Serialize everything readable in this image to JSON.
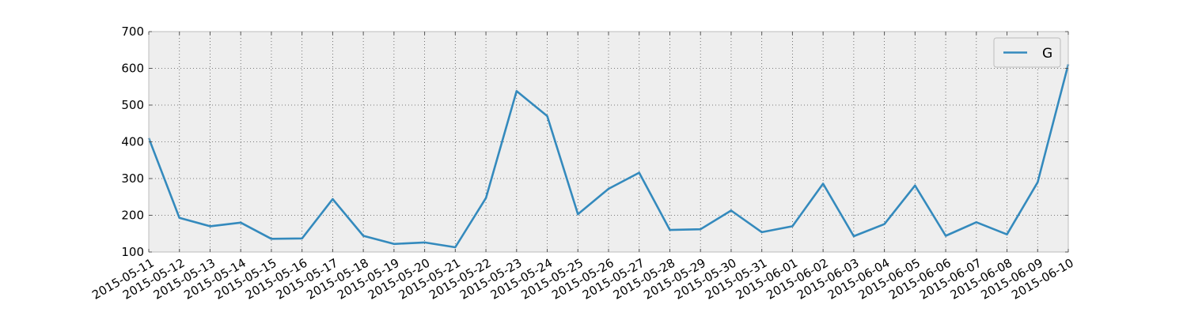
{
  "chart_data": {
    "type": "line",
    "title": "",
    "xlabel": "",
    "ylabel": "",
    "x": [
      "2015-05-11",
      "2015-05-12",
      "2015-05-13",
      "2015-05-14",
      "2015-05-15",
      "2015-05-16",
      "2015-05-17",
      "2015-05-18",
      "2015-05-19",
      "2015-05-20",
      "2015-05-21",
      "2015-05-22",
      "2015-05-23",
      "2015-05-24",
      "2015-05-25",
      "2015-05-26",
      "2015-05-27",
      "2015-05-28",
      "2015-05-29",
      "2015-05-30",
      "2015-05-31",
      "2015-06-01",
      "2015-06-02",
      "2015-06-03",
      "2015-06-04",
      "2015-06-05",
      "2015-06-06",
      "2015-06-07",
      "2015-06-08",
      "2015-06-09",
      "2015-06-10"
    ],
    "series": [
      {
        "name": "G",
        "color": "#348abd",
        "values": [
          410,
          193,
          170,
          180,
          136,
          137,
          244,
          144,
          122,
          126,
          113,
          247,
          538,
          470,
          203,
          272,
          316,
          160,
          162,
          213,
          154,
          170,
          286,
          143,
          176,
          281,
          144,
          181,
          148,
          290,
          611
        ]
      }
    ],
    "ylim": [
      100,
      700
    ],
    "yticks": [
      "100",
      "200",
      "300",
      "400",
      "500",
      "600",
      "700"
    ],
    "grid": true,
    "background": "#eeeeee",
    "grid_color": "#555555",
    "legend": "top-right"
  }
}
